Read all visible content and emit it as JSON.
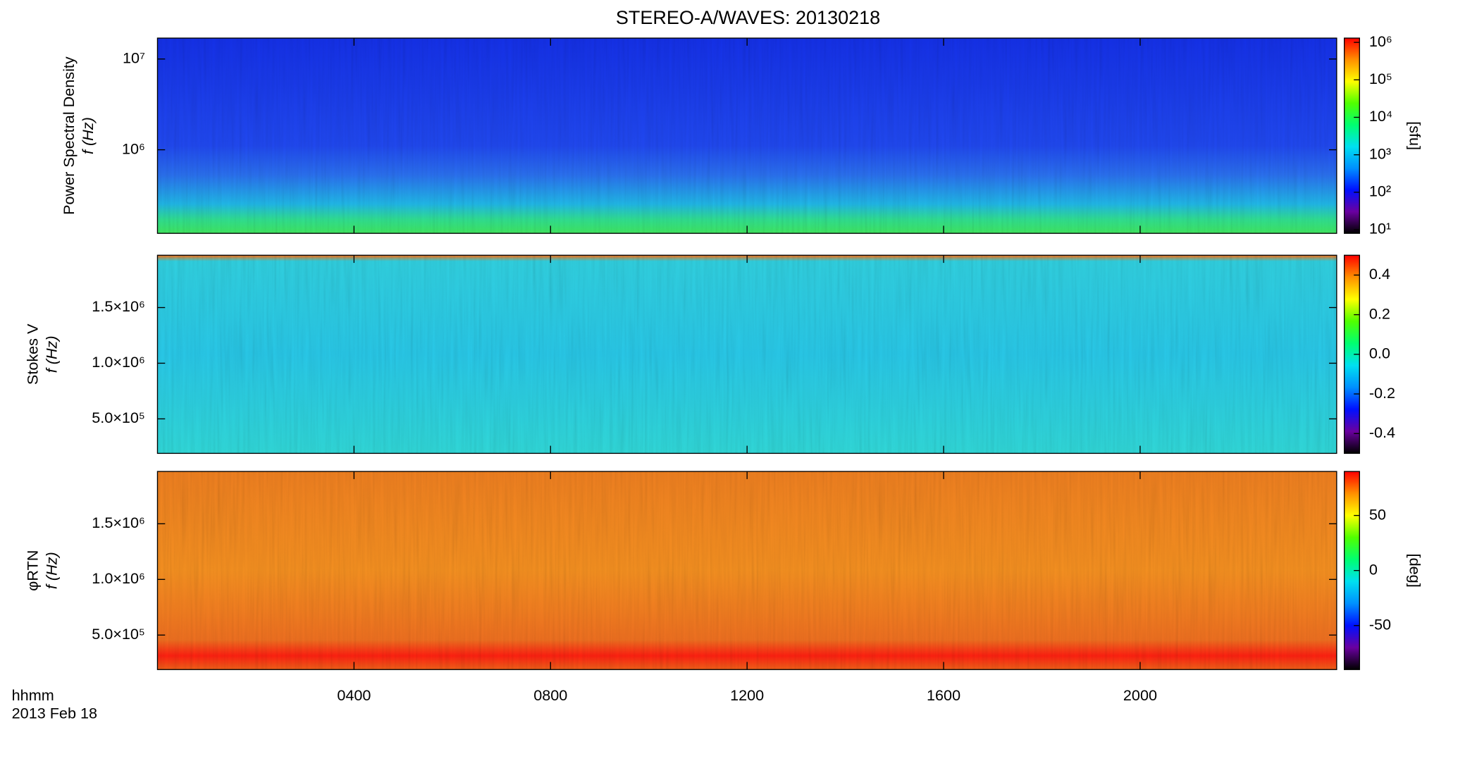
{
  "header": {
    "title": "STEREO-A/WAVES: 20130218"
  },
  "time_axis": {
    "label": "hhmm",
    "date": "2013 Feb 18",
    "xlim": [
      0,
      24
    ],
    "xticks": [
      {
        "value": 4,
        "label": "0400"
      },
      {
        "value": 8,
        "label": "0800"
      },
      {
        "value": 12,
        "label": "1200"
      },
      {
        "value": 16,
        "label": "1600"
      },
      {
        "value": 20,
        "label": "2000"
      }
    ]
  },
  "chart_data": [
    {
      "type": "heatmap",
      "ylabel": [
        "Power Spectral Density",
        "f (Hz)"
      ],
      "ylog": true,
      "ylim": [
        120000,
        17000000
      ],
      "yticks": [
        {
          "value": 1000000,
          "label": "10⁶"
        },
        {
          "value": 10000000,
          "label": "10⁷"
        }
      ],
      "colorbar": {
        "label": "[sfu]",
        "log": true,
        "zlim": [
          8,
          1300000
        ],
        "ticks": [
          {
            "value": 10,
            "label": "10¹"
          },
          {
            "value": 100,
            "label": "10²"
          },
          {
            "value": 1000,
            "label": "10³"
          },
          {
            "value": 10000,
            "label": "10⁴"
          },
          {
            "value": 100000,
            "label": "10⁵"
          },
          {
            "value": 1000000,
            "label": "10⁶"
          }
        ]
      },
      "colormap": [
        "#000000",
        "#6a00a0",
        "#0010ff",
        "#0090ff",
        "#00e0f0",
        "#00ff70",
        "#50ff00",
        "#ffff00",
        "#ff9000",
        "#ff0000"
      ]
    },
    {
      "type": "heatmap",
      "ylabel": [
        "Stokes V",
        "f (Hz)"
      ],
      "ylog": false,
      "ylim": [
        190000,
        1970000
      ],
      "yticks": [
        {
          "value": 500000,
          "label": "5.0×10⁵"
        },
        {
          "value": 1000000,
          "label": "1.0×10⁶"
        },
        {
          "value": 1500000,
          "label": "1.5×10⁶"
        }
      ],
      "colorbar": {
        "log": false,
        "zlim": [
          -0.5,
          0.5
        ],
        "ticks": [
          -0.4,
          -0.2,
          {
            "value": 0,
            "label": "0.0"
          },
          0.2,
          0.4
        ]
      },
      "colormap": [
        "#000000",
        "#6a00a0",
        "#0010ff",
        "#0090ff",
        "#00e0f0",
        "#00ff70",
        "#50ff00",
        "#ffff00",
        "#ff9000",
        "#ff0000"
      ]
    },
    {
      "type": "heatmap",
      "ylabel": [
        "φRTN",
        "f (Hz)"
      ],
      "ylog": false,
      "ylim": [
        190000,
        1970000
      ],
      "yticks": [
        {
          "value": 500000,
          "label": "5.0×10⁵"
        },
        {
          "value": 1000000,
          "label": "1.0×10⁶"
        },
        {
          "value": 1500000,
          "label": "1.5×10⁶"
        }
      ],
      "colorbar": {
        "label": "[deg]",
        "log": false,
        "zlim": [
          -90,
          90
        ],
        "ticks": [
          -50,
          0,
          50
        ]
      },
      "colormap": [
        "#000000",
        "#6a00a0",
        "#0010ff",
        "#0090ff",
        "#00e0f0",
        "#00ff70",
        "#50ff00",
        "#ffff00",
        "#ff9000",
        "#ff0000"
      ]
    }
  ]
}
